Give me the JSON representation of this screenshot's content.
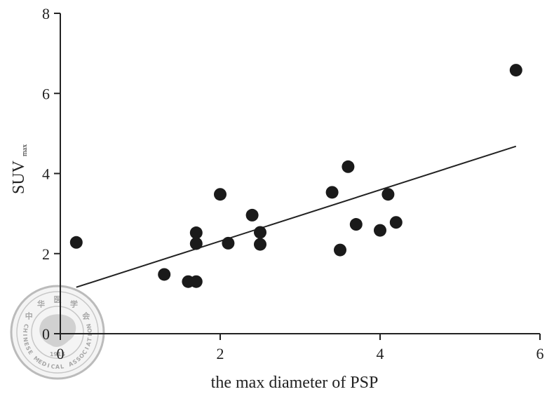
{
  "chart_data": {
    "type": "scatter",
    "xlabel": "the max diameter of PSP",
    "ylabel": "SUV",
    "ylabel_subscript": "max",
    "xlim": [
      0,
      6
    ],
    "ylim": [
      0,
      8
    ],
    "xticks": [
      0,
      2,
      4,
      6
    ],
    "yticks": [
      0,
      2,
      4,
      6,
      8
    ],
    "grid": false,
    "points": [
      {
        "x": 0.2,
        "y": 2.28
      },
      {
        "x": 1.3,
        "y": 1.48
      },
      {
        "x": 1.6,
        "y": 1.3
      },
      {
        "x": 1.7,
        "y": 1.3
      },
      {
        "x": 1.7,
        "y": 2.52
      },
      {
        "x": 1.7,
        "y": 2.25
      },
      {
        "x": 2.0,
        "y": 3.48
      },
      {
        "x": 2.1,
        "y": 2.26
      },
      {
        "x": 2.4,
        "y": 2.96
      },
      {
        "x": 2.5,
        "y": 2.53
      },
      {
        "x": 2.5,
        "y": 2.23
      },
      {
        "x": 3.4,
        "y": 3.53
      },
      {
        "x": 3.5,
        "y": 2.09
      },
      {
        "x": 3.6,
        "y": 4.17
      },
      {
        "x": 3.7,
        "y": 2.73
      },
      {
        "x": 4.0,
        "y": 2.58
      },
      {
        "x": 4.1,
        "y": 3.48
      },
      {
        "x": 4.2,
        "y": 2.78
      },
      {
        "x": 5.7,
        "y": 6.58
      }
    ],
    "trendline": {
      "x": [
        0.2,
        5.7
      ],
      "y": [
        1.16,
        4.68
      ]
    },
    "colors": {
      "points": "#1a1a1a",
      "axis": "#222222",
      "watermark": "#9a9a9a"
    }
  },
  "watermark": {
    "top_text": "中 华 医 学 会",
    "bottom_text": "CHINESE MEDICAL ASSOCIATION",
    "year": "1915"
  }
}
